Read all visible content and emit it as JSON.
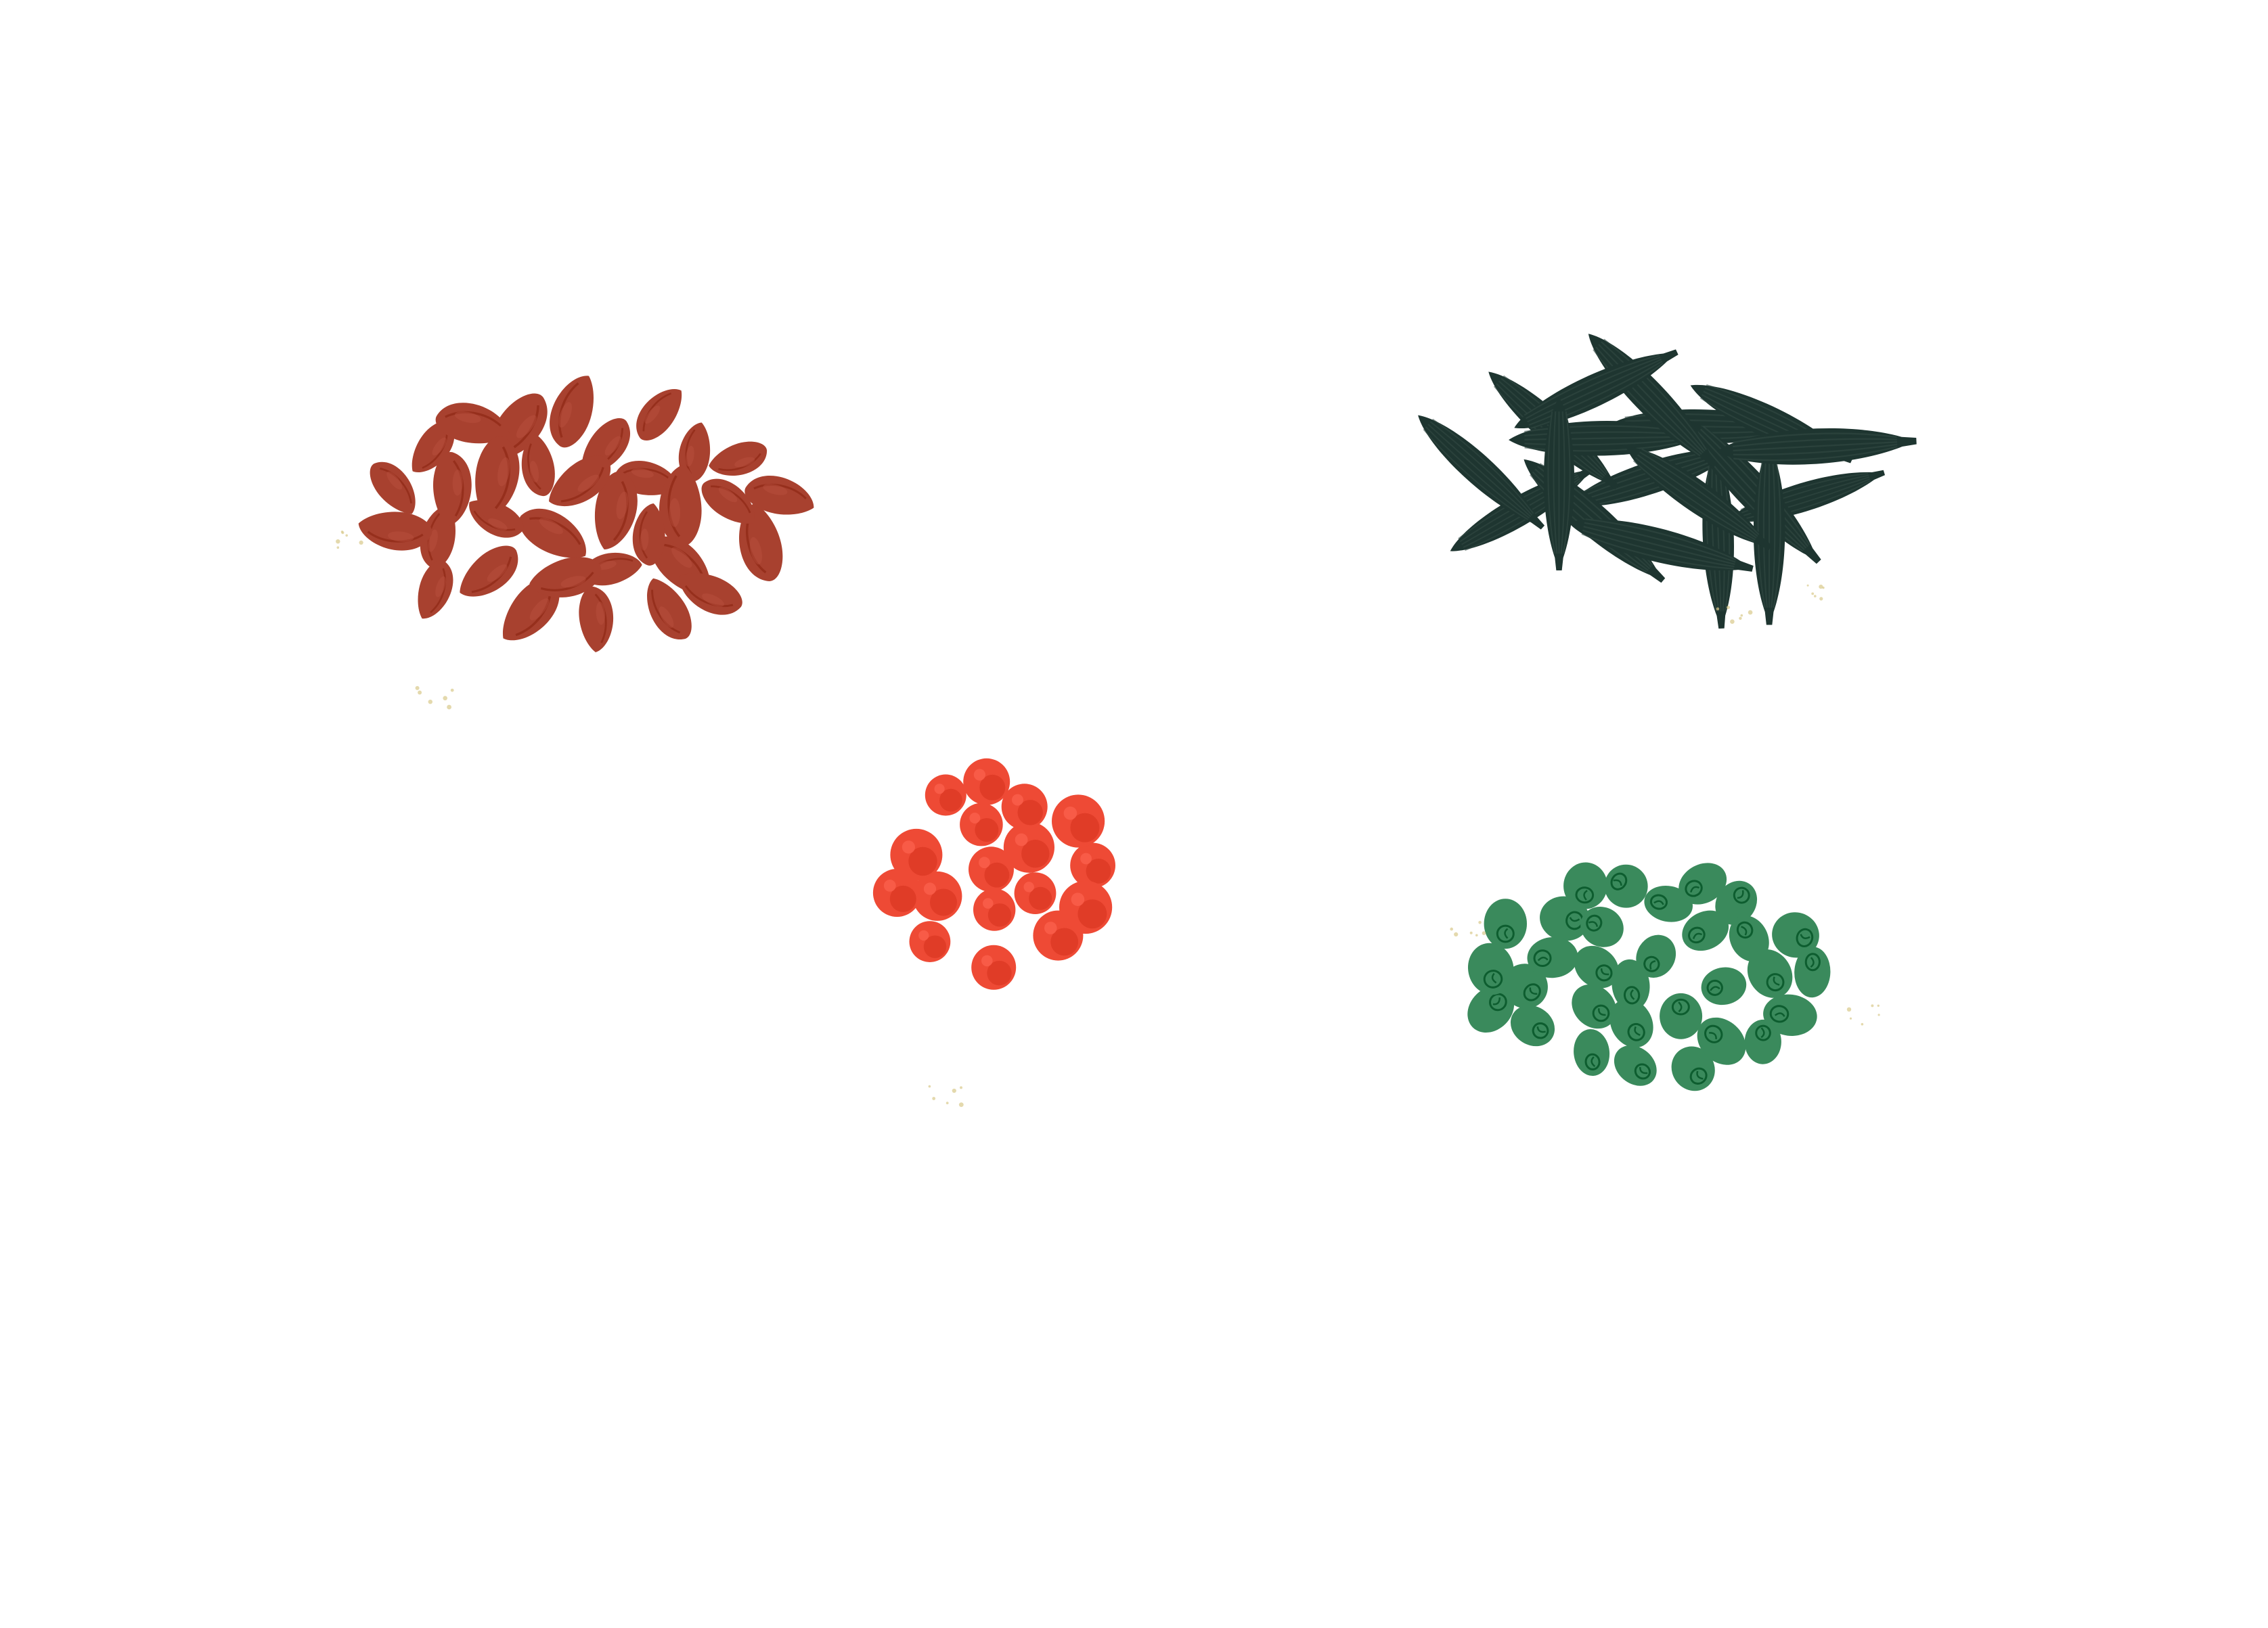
{
  "background": "#ffffff",
  "illustration": {
    "clusters": [
      {
        "id": "brown-seeds",
        "shape": "teardrop-seed",
        "fill": "#a8412f",
        "count": 38
      },
      {
        "id": "dark-green-pods",
        "shape": "elongated-pod",
        "fill": "#1e3530",
        "count": 20
      },
      {
        "id": "red-berries",
        "shape": "round-berry",
        "fill": "#ee4a35",
        "count": 22
      },
      {
        "id": "green-pods",
        "shape": "round-green-pod",
        "fill": "#3a8a5c",
        "count": 40
      }
    ],
    "speckle_color": "#d9c98a"
  }
}
